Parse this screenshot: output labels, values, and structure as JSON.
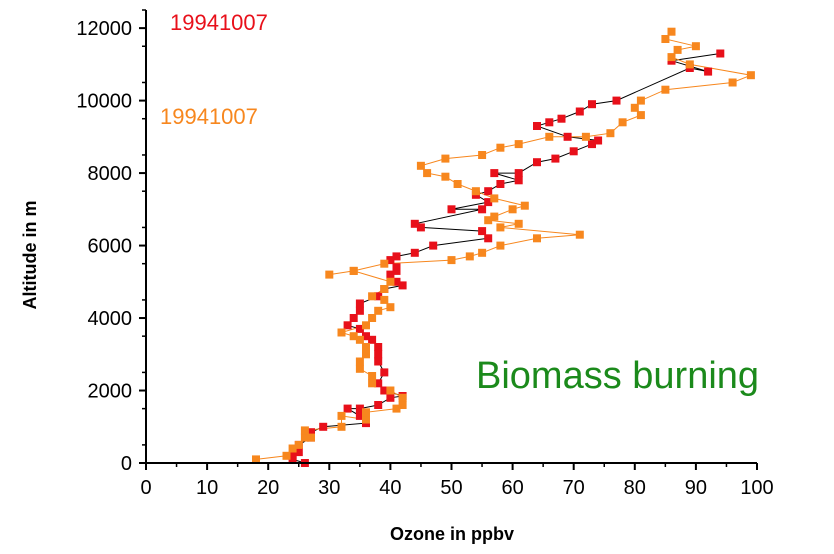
{
  "chart_data": {
    "type": "scatter",
    "xlabel": "Ozone in ppbv",
    "ylabel": "Altitude in m",
    "xlim": [
      0,
      100
    ],
    "ylim": [
      0,
      12500
    ],
    "x_ticks": [
      0,
      10,
      20,
      30,
      40,
      50,
      60,
      70,
      80,
      90,
      100
    ],
    "y_ticks": [
      0,
      2000,
      4000,
      6000,
      8000,
      10000,
      12000
    ],
    "grid": false,
    "colors": {
      "red": "#e8101a",
      "orange": "#f7871e",
      "green": "#1b8a1b"
    },
    "annotations": [
      {
        "text": "19941007",
        "color": "#e8101a"
      },
      {
        "text": "19941007",
        "color": "#f7871e"
      },
      {
        "text": "Biomass burning",
        "color": "#1b8a1b"
      }
    ],
    "series": [
      {
        "color": "#e8101a",
        "line_color": "#000000",
        "points": [
          [
            26,
            0
          ],
          [
            24,
            100
          ],
          [
            24,
            200
          ],
          [
            25,
            300
          ],
          [
            25,
            500
          ],
          [
            27,
            700
          ],
          [
            27,
            850
          ],
          [
            29,
            1000
          ],
          [
            36,
            1100
          ],
          [
            35,
            1300
          ],
          [
            33,
            1500
          ],
          [
            35,
            1500
          ],
          [
            38,
            1600
          ],
          [
            40,
            1800
          ],
          [
            42,
            1850
          ],
          [
            39,
            2000
          ],
          [
            38,
            2200
          ],
          [
            39,
            2500
          ],
          [
            38,
            2800
          ],
          [
            38,
            3000
          ],
          [
            38,
            3200
          ],
          [
            37,
            3400
          ],
          [
            36,
            3500
          ],
          [
            35,
            3700
          ],
          [
            33,
            3800
          ],
          [
            34,
            4000
          ],
          [
            35,
            4200
          ],
          [
            35,
            4400
          ],
          [
            38,
            4600
          ],
          [
            39,
            4800
          ],
          [
            42,
            4900
          ],
          [
            41,
            5000
          ],
          [
            40,
            5200
          ],
          [
            41,
            5300
          ],
          [
            41,
            5400
          ],
          [
            40,
            5600
          ],
          [
            41,
            5700
          ],
          [
            44,
            5800
          ],
          [
            47,
            6000
          ],
          [
            56,
            6200
          ],
          [
            55,
            6400
          ],
          [
            45,
            6500
          ],
          [
            44,
            6600
          ],
          [
            55,
            7000
          ],
          [
            50,
            7000
          ],
          [
            56,
            7200
          ],
          [
            54,
            7400
          ],
          [
            56,
            7500
          ],
          [
            58,
            7700
          ],
          [
            61,
            7800
          ],
          [
            57,
            8000
          ],
          [
            61,
            8000
          ],
          [
            64,
            8300
          ],
          [
            67,
            8400
          ],
          [
            70,
            8600
          ],
          [
            73,
            8800
          ],
          [
            74,
            8900
          ],
          [
            69,
            9000
          ],
          [
            64,
            9300
          ],
          [
            66,
            9400
          ],
          [
            68,
            9500
          ],
          [
            71,
            9700
          ],
          [
            73,
            9900
          ],
          [
            77,
            10000
          ],
          [
            89,
            10900
          ],
          [
            92,
            10800
          ],
          [
            86,
            11100
          ],
          [
            94,
            11300
          ]
        ]
      },
      {
        "color": "#f7871e",
        "line_color": "#f7871e",
        "points": [
          [
            18,
            100
          ],
          [
            23,
            200
          ],
          [
            24,
            400
          ],
          [
            25,
            500
          ],
          [
            26,
            700
          ],
          [
            27,
            700
          ],
          [
            26,
            900
          ],
          [
            32,
            1000
          ],
          [
            32,
            1300
          ],
          [
            36,
            1200
          ],
          [
            36,
            1400
          ],
          [
            41,
            1500
          ],
          [
            42,
            1600
          ],
          [
            42,
            1800
          ],
          [
            40,
            2000
          ],
          [
            37,
            2200
          ],
          [
            37,
            2400
          ],
          [
            35,
            2600
          ],
          [
            35,
            2800
          ],
          [
            36,
            3000
          ],
          [
            36,
            3200
          ],
          [
            35,
            3400
          ],
          [
            34,
            3500
          ],
          [
            32,
            3600
          ],
          [
            36,
            3800
          ],
          [
            37,
            4000
          ],
          [
            38,
            4200
          ],
          [
            40,
            4300
          ],
          [
            39,
            4500
          ],
          [
            37,
            4600
          ],
          [
            39,
            4800
          ],
          [
            40,
            5000
          ],
          [
            34,
            5300
          ],
          [
            30,
            5200
          ],
          [
            34,
            5300
          ],
          [
            39,
            5500
          ],
          [
            50,
            5600
          ],
          [
            53,
            5700
          ],
          [
            55,
            5800
          ],
          [
            58,
            6000
          ],
          [
            64,
            6200
          ],
          [
            71,
            6300
          ],
          [
            58,
            6500
          ],
          [
            61,
            6600
          ],
          [
            56,
            6700
          ],
          [
            57,
            6800
          ],
          [
            60,
            7000
          ],
          [
            62,
            7100
          ],
          [
            57,
            7300
          ],
          [
            54,
            7500
          ],
          [
            51,
            7700
          ],
          [
            49,
            7900
          ],
          [
            46,
            8000
          ],
          [
            45,
            8200
          ],
          [
            49,
            8400
          ],
          [
            55,
            8500
          ],
          [
            58,
            8700
          ],
          [
            61,
            8800
          ],
          [
            66,
            9000
          ],
          [
            72,
            9000
          ],
          [
            76,
            9100
          ],
          [
            78,
            9400
          ],
          [
            81,
            9600
          ],
          [
            80,
            9800
          ],
          [
            81,
            10000
          ],
          [
            85,
            10300
          ],
          [
            96,
            10500
          ],
          [
            99,
            10700
          ],
          [
            89,
            11000
          ],
          [
            86,
            11200
          ],
          [
            87,
            11400
          ],
          [
            90,
            11500
          ],
          [
            85,
            11700
          ],
          [
            86,
            11900
          ]
        ]
      }
    ]
  }
}
